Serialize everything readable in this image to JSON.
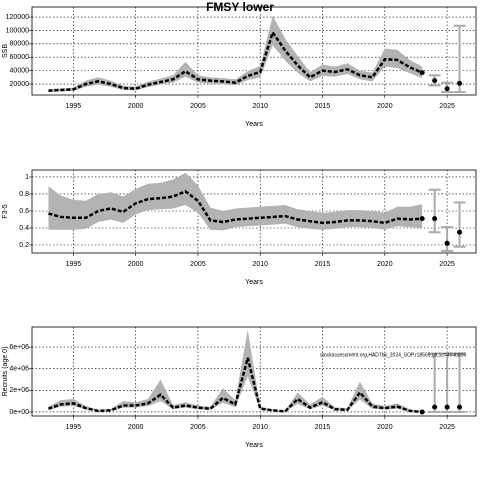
{
  "chart_data": [
    {
      "type": "line",
      "title": "FMSY lower",
      "ylabel": "SSB",
      "xlabel": "Years",
      "x": [
        1993,
        1994,
        1995,
        1996,
        1997,
        1998,
        1999,
        2000,
        2001,
        2002,
        2003,
        2004,
        2005,
        2006,
        2007,
        2008,
        2009,
        2010,
        2011,
        2012,
        2013,
        2014,
        2015,
        2016,
        2017,
        2018,
        2019,
        2020,
        2021,
        2022,
        2023
      ],
      "values": [
        10000,
        11000,
        12000,
        20000,
        24000,
        20000,
        14000,
        13000,
        19000,
        23000,
        27000,
        39000,
        27000,
        25000,
        24000,
        22000,
        32000,
        38000,
        97000,
        70000,
        48000,
        30000,
        40000,
        38000,
        42000,
        33000,
        30000,
        57000,
        56000,
        45000,
        37000
      ],
      "lower": [
        8000,
        9000,
        10000,
        16000,
        19000,
        16000,
        11000,
        10500,
        15500,
        19000,
        22000,
        31000,
        22000,
        20500,
        19500,
        18000,
        26000,
        30000,
        78000,
        55000,
        37000,
        24000,
        32000,
        31000,
        35000,
        27000,
        24000,
        46000,
        44000,
        36000,
        29000
      ],
      "upper": [
        12500,
        13500,
        14500,
        25000,
        30000,
        25000,
        17500,
        16000,
        23500,
        28000,
        33000,
        53000,
        33000,
        30000,
        29000,
        27000,
        39000,
        47000,
        122000,
        88000,
        62000,
        38000,
        49000,
        46000,
        51000,
        40000,
        37000,
        73000,
        71000,
        56000,
        46000
      ],
      "points": {
        "x": [
          2024,
          2025,
          2026
        ],
        "values": [
          25000,
          13000,
          21000
        ],
        "lower": [
          18000,
          8000,
          8000
        ],
        "upper": [
          33000,
          22000,
          107000
        ]
      },
      "xlim": [
        1991.68,
        2027.32
      ],
      "xticks": [
        1995,
        2000,
        2005,
        2010,
        2015,
        2020,
        2025
      ],
      "ylim": [
        3600,
        135000
      ],
      "yticks": [
        20000,
        40000,
        60000,
        80000,
        100000,
        120000
      ],
      "grid": true
    },
    {
      "type": "line",
      "ylabel": "F3-5",
      "xlabel": "Years",
      "x": [
        1993,
        1994,
        1995,
        1996,
        1997,
        1998,
        1999,
        2000,
        2001,
        2002,
        2003,
        2004,
        2005,
        2006,
        2007,
        2008,
        2009,
        2010,
        2011,
        2012,
        2013,
        2014,
        2015,
        2016,
        2017,
        2018,
        2019,
        2020,
        2021,
        2022,
        2023
      ],
      "values": [
        0.57,
        0.53,
        0.52,
        0.52,
        0.6,
        0.63,
        0.59,
        0.69,
        0.74,
        0.75,
        0.77,
        0.83,
        0.72,
        0.49,
        0.47,
        0.5,
        0.51,
        0.52,
        0.53,
        0.54,
        0.5,
        0.48,
        0.46,
        0.47,
        0.49,
        0.49,
        0.48,
        0.46,
        0.51,
        0.5,
        0.51
      ],
      "lower": [
        0.38,
        0.38,
        0.38,
        0.39,
        0.47,
        0.5,
        0.46,
        0.56,
        0.61,
        0.62,
        0.63,
        0.67,
        0.58,
        0.38,
        0.37,
        0.41,
        0.42,
        0.43,
        0.44,
        0.45,
        0.41,
        0.39,
        0.38,
        0.39,
        0.41,
        0.41,
        0.4,
        0.38,
        0.42,
        0.41,
        0.4
      ],
      "upper": [
        0.89,
        0.78,
        0.73,
        0.72,
        0.8,
        0.82,
        0.77,
        0.86,
        0.92,
        0.93,
        0.97,
        1.05,
        0.9,
        0.64,
        0.6,
        0.63,
        0.64,
        0.65,
        0.66,
        0.67,
        0.62,
        0.6,
        0.58,
        0.59,
        0.61,
        0.61,
        0.6,
        0.58,
        0.65,
        0.65,
        0.68
      ],
      "points": {
        "x": [
          2024,
          2025,
          2026
        ],
        "values": [
          0.51,
          0.22,
          0.35
        ],
        "lower": [
          0.35,
          0.13,
          0.18
        ],
        "upper": [
          0.85,
          0.41,
          0.7
        ]
      },
      "xlim": [
        1991.68,
        2027.32
      ],
      "xticks": [
        1995,
        2000,
        2005,
        2010,
        2015,
        2020,
        2025
      ],
      "ylim": [
        0.106,
        1.082
      ],
      "yticks": [
        0.2,
        0.4,
        0.6,
        0.8,
        1.0
      ],
      "grid": true
    },
    {
      "type": "line",
      "ylabel": "Recruits (age 0)",
      "xlabel": "Years",
      "annotation": "stockassessment.org,HAD7bk_2024_SOP,r18569,git,1c=464b806",
      "x": [
        1993,
        1994,
        1995,
        1996,
        1997,
        1998,
        1999,
        2000,
        2001,
        2002,
        2003,
        2004,
        2005,
        2006,
        2007,
        2008,
        2009,
        2010,
        2011,
        2012,
        2013,
        2014,
        2015,
        2016,
        2017,
        2018,
        2019,
        2020,
        2021,
        2022,
        2023
      ],
      "values": [
        300000,
        700000,
        800000,
        350000,
        100000,
        150000,
        600000,
        600000,
        800000,
        1600000,
        400000,
        600000,
        400000,
        300000,
        1300000,
        700000,
        5000000,
        300000,
        150000,
        50000,
        1200000,
        400000,
        900000,
        250000,
        200000,
        1800000,
        500000,
        350000,
        500000,
        100000,
        0
      ],
      "lower": [
        200000,
        500000,
        550000,
        230000,
        60000,
        90000,
        400000,
        400000,
        550000,
        1000000,
        260000,
        400000,
        260000,
        190000,
        850000,
        450000,
        3300000,
        180000,
        90000,
        20000,
        750000,
        250000,
        580000,
        150000,
        120000,
        1150000,
        300000,
        220000,
        300000,
        40000,
        0
      ],
      "upper": [
        500000,
        1100000,
        1200000,
        550000,
        200000,
        260000,
        1000000,
        900000,
        1200000,
        3000000,
        650000,
        900000,
        600000,
        480000,
        2200000,
        1100000,
        7600000,
        480000,
        260000,
        120000,
        1800000,
        700000,
        1400000,
        420000,
        350000,
        2800000,
        800000,
        550000,
        800000,
        250000,
        50000
      ],
      "points": {
        "x": [
          2024,
          2025,
          2026
        ],
        "values": [
          450000,
          450000,
          450000
        ],
        "lower": [
          0,
          0,
          0
        ],
        "upper": [
          5400000,
          5400000,
          5400000
        ]
      },
      "xlim": [
        1991.68,
        2027.32
      ],
      "xticks": [
        1995,
        2000,
        2005,
        2010,
        2015,
        2020,
        2025
      ],
      "ylim": [
        -372000,
        7860000
      ],
      "yticks": [
        {
          "value": 0,
          "label": "0e+00"
        },
        {
          "value": 2000000,
          "label": "2e+06"
        },
        {
          "value": 4000000,
          "label": "4e+06"
        },
        {
          "value": 6000000,
          "label": "6e+06"
        }
      ],
      "grid": true
    }
  ]
}
